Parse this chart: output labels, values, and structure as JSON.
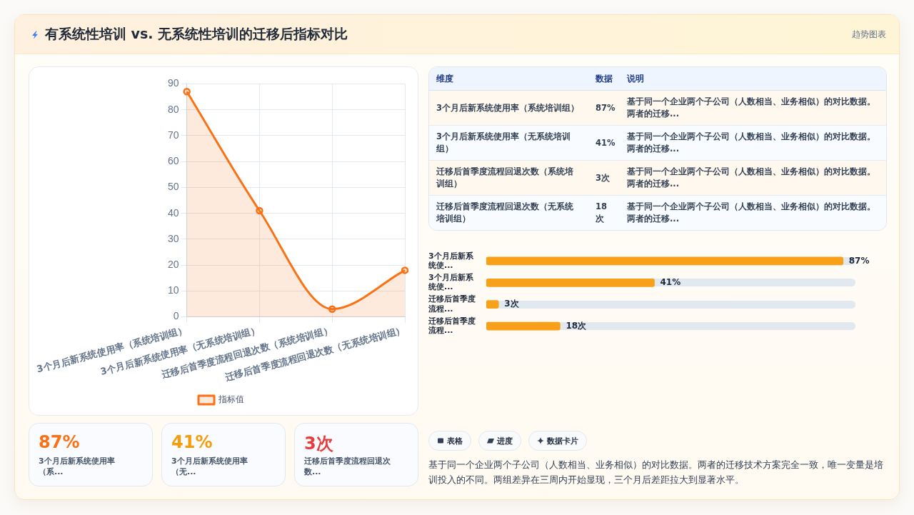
{
  "chart_data": [
    {
      "type": "other",
      "title": "有系统性培训 vs. 无系统性培训的迁移后指标对比",
      "subtitle": "趋势图表"
    },
    {
      "type": "area",
      "categories": [
        "3个月后新系统使用率（系统培训组）",
        "3个月后新系统使用率（无系统培训组）",
        "迁移后首季度流程回退次数（系统培训组）",
        "迁移后首季度流程回退次数（无系统培训组）"
      ],
      "series": [
        {
          "name": "指标值",
          "color": "#f97316",
          "values": [
            87,
            41,
            3,
            18
          ]
        }
      ],
      "ylim": [
        0,
        90
      ],
      "yticks": [
        0,
        10,
        20,
        30,
        40,
        50,
        60,
        70,
        80,
        90
      ],
      "grid": true,
      "legend": "bottom",
      "marker": "circle"
    },
    {
      "type": "other",
      "categories": [
        "3个月后新系统使用率（系统培训组）",
        "3个月后新系统使用率（无系统培训组）",
        "迁移后首季度流程回退次数（系统培训组）",
        "迁移后首季度流程回退次数（无系统培训组）"
      ],
      "value_labels": [
        "87%",
        "41%",
        "3次",
        "18次"
      ],
      "annotations": [
        "维度",
        "数据",
        "说明",
        "基于同一个企业两个子公司（人数相当、业务相似）的对比数据。两者的迁移...",
        "基于同一个企业两个子公司（人数相当、业务相似）的对比数据。两者的迁移...",
        "基于同一个企业两个子公司（人数相当、业务相似）的对比数据。两者的迁移...",
        "基于同一个企业两个子公司（人数相当、业务相似）的对比数据。两者的迁移..."
      ]
    },
    {
      "type": "bar",
      "orientation": "horizontal",
      "categories": [
        "3个月后新系统使...",
        "3个月后新系统使...",
        "迁移后首季度流程...",
        "迁移后首季度流程..."
      ],
      "values": [
        87,
        41,
        3,
        18
      ],
      "value_labels": [
        "87%",
        "41%",
        "3次",
        "18次"
      ],
      "color": "#f8a01a",
      "tick_labels": "y"
    },
    {
      "type": "other",
      "categories": [
        "3个月后新系统使用率（系...",
        "3个月后新系统使用率（无...",
        "迁移后首季度流程回退次数..."
      ],
      "value_labels": [
        "87%",
        "41%",
        "3次"
      ]
    },
    {
      "type": "other",
      "categories": [
        "表格",
        "进度",
        "数据卡片"
      ],
      "annotations": [
        "基于同一个企业两个子公司（人数相当、业务相似）的对比数据。两者的迁移技术方案完全一致，唯一变量是培训投入的不同。两组差异在三周内开始显现，三个月后差距拉大到显著水平。"
      ]
    }
  ]
}
